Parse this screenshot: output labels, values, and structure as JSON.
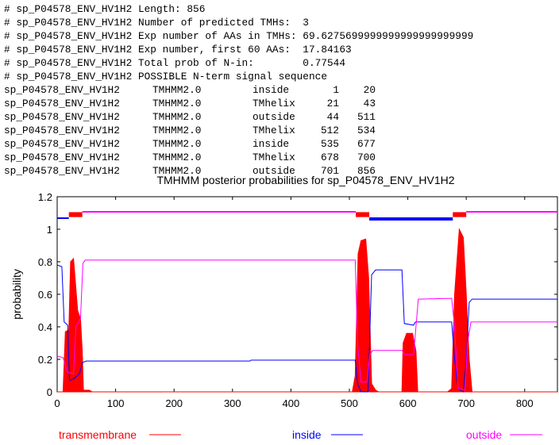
{
  "header_lines": [
    "# sp_P04578_ENV_HV1H2 Length: 856",
    "# sp_P04578_ENV_HV1H2 Number of predicted TMHs:  3",
    "# sp_P04578_ENV_HV1H2 Exp number of AAs in TMHs: 69.6275699999999999999999999",
    "# sp_P04578_ENV_HV1H2 Exp number, first 60 AAs:  17.84163",
    "# sp_P04578_ENV_HV1H2 Total prob of N-in:        0.77544",
    "# sp_P04578_ENV_HV1H2 POSSIBLE N-term signal sequence"
  ],
  "rows": [
    {
      "name": "sp_P04578_ENV_HV1H2",
      "method": "TMHMM2.0",
      "type": "inside",
      "start": "1",
      "end": "20"
    },
    {
      "name": "sp_P04578_ENV_HV1H2",
      "method": "TMHMM2.0",
      "type": "TMhelix",
      "start": "21",
      "end": "43"
    },
    {
      "name": "sp_P04578_ENV_HV1H2",
      "method": "TMHMM2.0",
      "type": "outside",
      "start": "44",
      "end": "511"
    },
    {
      "name": "sp_P04578_ENV_HV1H2",
      "method": "TMHMM2.0",
      "type": "TMhelix",
      "start": "512",
      "end": "534"
    },
    {
      "name": "sp_P04578_ENV_HV1H2",
      "method": "TMHMM2.0",
      "type": "inside",
      "start": "535",
      "end": "677"
    },
    {
      "name": "sp_P04578_ENV_HV1H2",
      "method": "TMHMM2.0",
      "type": "TMhelix",
      "start": "678",
      "end": "700"
    },
    {
      "name": "sp_P04578_ENV_HV1H2",
      "method": "TMHMM2.0",
      "type": "outside",
      "start": "701",
      "end": "856"
    }
  ],
  "chart_data": {
    "type": "line",
    "title": "TMHMM posterior probabilities for sp_P04578_ENV_HV1H2",
    "xlabel": "",
    "ylabel": "probability",
    "xlim": [
      0,
      856
    ],
    "ylim": [
      0,
      1.2
    ],
    "xticks": [
      "0",
      "100",
      "200",
      "300",
      "400",
      "500",
      "600",
      "700",
      "800"
    ],
    "yticks": [
      "0",
      "0.2",
      "0.4",
      "0.6",
      "0.8",
      "1",
      "1.2"
    ],
    "legend_position": "bottom",
    "colors": {
      "transmembrane": "#ff0000",
      "inside": "#0000ff",
      "outside": "#ff00ff"
    },
    "series": [
      {
        "name": "transmembrane",
        "style": "filled",
        "points": [
          [
            0,
            0
          ],
          [
            10,
            0
          ],
          [
            14,
            0.37
          ],
          [
            20,
            0.38
          ],
          [
            23,
            0.8
          ],
          [
            28,
            0.82
          ],
          [
            35,
            0.5
          ],
          [
            40,
            0.45
          ],
          [
            43,
            0.25
          ],
          [
            45,
            0.01
          ],
          [
            55,
            0.01
          ],
          [
            60,
            0
          ],
          [
            505,
            0
          ],
          [
            510,
            0.1
          ],
          [
            515,
            0.85
          ],
          [
            520,
            0.93
          ],
          [
            528,
            0.94
          ],
          [
            533,
            0.7
          ],
          [
            538,
            0.05
          ],
          [
            545,
            0.01
          ],
          [
            550,
            0
          ],
          [
            590,
            0
          ],
          [
            592,
            0.3
          ],
          [
            598,
            0.36
          ],
          [
            608,
            0.36
          ],
          [
            614,
            0.25
          ],
          [
            617,
            0
          ],
          [
            668,
            0
          ],
          [
            675,
            0.02
          ],
          [
            680,
            0.6
          ],
          [
            688,
            1.0
          ],
          [
            695,
            0.95
          ],
          [
            700,
            0.6
          ],
          [
            705,
            0.2
          ],
          [
            710,
            0
          ],
          [
            856,
            0
          ]
        ]
      },
      {
        "name": "inside",
        "style": "line",
        "points": [
          [
            0,
            0.78
          ],
          [
            8,
            0.77
          ],
          [
            12,
            0.43
          ],
          [
            18,
            0.41
          ],
          [
            21,
            0.07
          ],
          [
            28,
            0.08
          ],
          [
            38,
            0.11
          ],
          [
            43,
            0.18
          ],
          [
            50,
            0.19
          ],
          [
            330,
            0.19
          ],
          [
            332,
            0.195
          ],
          [
            510,
            0.195
          ],
          [
            514,
            0.05
          ],
          [
            520,
            0
          ],
          [
            532,
            0
          ],
          [
            538,
            0.72
          ],
          [
            545,
            0.75
          ],
          [
            590,
            0.75
          ],
          [
            594,
            0.42
          ],
          [
            610,
            0.41
          ],
          [
            613,
            0.43
          ],
          [
            675,
            0.43
          ],
          [
            680,
            0.2
          ],
          [
            686,
            0.02
          ],
          [
            695,
            0
          ],
          [
            700,
            0.2
          ],
          [
            705,
            0.55
          ],
          [
            710,
            0.57
          ],
          [
            856,
            0.57
          ]
        ]
      },
      {
        "name": "outside",
        "style": "line",
        "points": [
          [
            0,
            0.22
          ],
          [
            10,
            0.21
          ],
          [
            18,
            0.12
          ],
          [
            28,
            0.11
          ],
          [
            32,
            0.4
          ],
          [
            40,
            0.45
          ],
          [
            44,
            0.79
          ],
          [
            48,
            0.81
          ],
          [
            510,
            0.81
          ],
          [
            514,
            0.3
          ],
          [
            520,
            0.06
          ],
          [
            530,
            0.06
          ],
          [
            535,
            0.23
          ],
          [
            540,
            0.255
          ],
          [
            590,
            0.255
          ],
          [
            595,
            0.23
          ],
          [
            610,
            0.23
          ],
          [
            618,
            0.57
          ],
          [
            675,
            0.575
          ],
          [
            680,
            0.4
          ],
          [
            686,
            0.02
          ],
          [
            698,
            0.01
          ],
          [
            702,
            0.3
          ],
          [
            708,
            0.43
          ],
          [
            856,
            0.43
          ]
        ]
      }
    ],
    "topology": [
      {
        "type": "inside",
        "start": 1,
        "end": 20
      },
      {
        "type": "TMhelix",
        "start": 21,
        "end": 43
      },
      {
        "type": "outside",
        "start": 44,
        "end": 511
      },
      {
        "type": "TMhelix",
        "start": 512,
        "end": 534
      },
      {
        "type": "inside",
        "start": 535,
        "end": 677
      },
      {
        "type": "TMhelix",
        "start": 678,
        "end": 700
      },
      {
        "type": "outside",
        "start": 701,
        "end": 856
      }
    ]
  }
}
